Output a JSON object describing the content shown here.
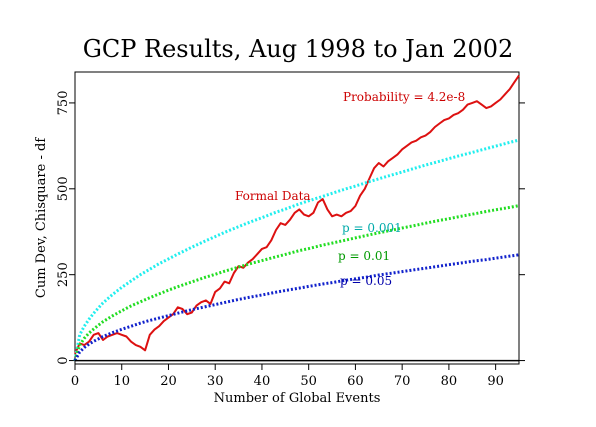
{
  "chart_data": {
    "type": "line",
    "title": "GCP Results, Aug 1998 to Jan 2002",
    "xlabel": "Number of Global Events",
    "ylabel": "Cum Dev, Chisquare - df",
    "xlim": [
      0,
      95
    ],
    "ylim": [
      -10,
      840
    ],
    "xticks": [
      0,
      10,
      20,
      30,
      40,
      50,
      60,
      70,
      80,
      90
    ],
    "yticks": [
      0,
      250,
      500,
      750
    ],
    "grid": false,
    "colors": {
      "formal_data": "#dd1111",
      "p_0_001": "#22eeee",
      "p_0_01": "#22dd22",
      "p_0_05": "#1122cc",
      "baseline": "#000000"
    },
    "annotations": {
      "probability": "Probability = 4.2e-8",
      "formal_data": "Formal Data",
      "p_0_001": "p = 0.001",
      "p_0_01": "p = 0.01",
      "p_0_05": "p = 0.05"
    },
    "series": [
      {
        "key": "formal_data",
        "style": "solid",
        "x": [
          0,
          1,
          2,
          3,
          4,
          5,
          6,
          7,
          8,
          9,
          10,
          11,
          12,
          13,
          14,
          15,
          16,
          17,
          18,
          19,
          20,
          21,
          22,
          23,
          24,
          25,
          26,
          27,
          28,
          29,
          30,
          31,
          32,
          33,
          34,
          35,
          36,
          37,
          38,
          39,
          40,
          41,
          42,
          43,
          44,
          45,
          46,
          47,
          48,
          49,
          50,
          51,
          52,
          53,
          54,
          55,
          56,
          57,
          58,
          59,
          60,
          61,
          62,
          63,
          64,
          65,
          66,
          67,
          68,
          69,
          70,
          71,
          72,
          73,
          74,
          75,
          76,
          77,
          78,
          79,
          80,
          81,
          82,
          83,
          84,
          85,
          86,
          87,
          88,
          89,
          90,
          91,
          92,
          93,
          94,
          95
        ],
        "y": [
          20,
          50,
          45,
          55,
          75,
          80,
          60,
          70,
          75,
          80,
          75,
          70,
          55,
          45,
          40,
          30,
          75,
          90,
          100,
          115,
          125,
          135,
          155,
          150,
          135,
          140,
          160,
          170,
          175,
          165,
          200,
          210,
          230,
          225,
          255,
          275,
          270,
          285,
          295,
          310,
          325,
          330,
          350,
          380,
          400,
          395,
          410,
          430,
          440,
          425,
          420,
          430,
          460,
          470,
          440,
          420,
          425,
          420,
          430,
          435,
          450,
          480,
          500,
          530,
          560,
          575,
          565,
          580,
          590,
          600,
          615,
          625,
          635,
          640,
          650,
          655,
          665,
          680,
          690,
          700,
          705,
          715,
          720,
          730,
          745,
          750,
          755,
          745,
          735,
          740,
          750,
          760,
          775,
          790,
          810,
          830
        ]
      },
      {
        "key": "p_0_001",
        "style": "dotted",
        "x": [
          0,
          1,
          2,
          3,
          4,
          5,
          6,
          8,
          10,
          12,
          14,
          16,
          18,
          20,
          22,
          25,
          28,
          30,
          32,
          35,
          38,
          40,
          43,
          45,
          48,
          50,
          53,
          55,
          58,
          60,
          63,
          65,
          68,
          70,
          73,
          75,
          78,
          80,
          83,
          85,
          88,
          90,
          93,
          95
        ],
        "y": [
          0,
          75,
          100,
          120,
          138,
          153,
          168,
          192,
          213,
          232,
          250,
          266,
          282,
          296,
          310,
          330,
          349,
          361,
          373,
          390,
          406,
          416,
          432,
          441,
          456,
          465,
          478,
          487,
          500,
          508,
          521,
          529,
          541,
          549,
          561,
          569,
          580,
          588,
          599,
          606,
          617,
          624,
          635,
          642
        ]
      },
      {
        "key": "p_0_01",
        "style": "dotted",
        "x": [
          0,
          1,
          2,
          3,
          4,
          5,
          6,
          8,
          10,
          12,
          14,
          16,
          18,
          20,
          22,
          25,
          28,
          30,
          32,
          35,
          38,
          40,
          43,
          45,
          48,
          50,
          53,
          55,
          58,
          60,
          63,
          65,
          68,
          70,
          73,
          75,
          78,
          80,
          83,
          85,
          88,
          90,
          93,
          95
        ],
        "y": [
          0,
          45,
          65,
          80,
          92,
          103,
          113,
          130,
          145,
          159,
          171,
          183,
          194,
          205,
          215,
          229,
          243,
          251,
          260,
          272,
          284,
          291,
          302,
          309,
          320,
          326,
          336,
          342,
          351,
          357,
          366,
          372,
          380,
          386,
          394,
          400,
          408,
          413,
          421,
          426,
          434,
          439,
          446,
          451
        ]
      },
      {
        "key": "p_0_05",
        "style": "dotted",
        "x": [
          0,
          1,
          2,
          3,
          4,
          5,
          6,
          8,
          10,
          12,
          14,
          16,
          18,
          20,
          22,
          25,
          28,
          30,
          32,
          35,
          38,
          40,
          43,
          45,
          48,
          50,
          53,
          55,
          58,
          60,
          63,
          65,
          68,
          70,
          73,
          75,
          78,
          80,
          83,
          85,
          88,
          90,
          93,
          95
        ],
        "y": [
          0,
          25,
          38,
          48,
          56,
          63,
          70,
          81,
          91,
          100,
          109,
          117,
          124,
          131,
          138,
          148,
          157,
          163,
          169,
          178,
          186,
          191,
          199,
          204,
          211,
          216,
          223,
          227,
          234,
          238,
          244,
          249,
          255,
          259,
          265,
          269,
          275,
          279,
          285,
          289,
          294,
          298,
          304,
          308
        ]
      },
      {
        "key": "baseline",
        "style": "solid",
        "x": [
          0,
          95
        ],
        "y": [
          0,
          0
        ]
      }
    ]
  }
}
